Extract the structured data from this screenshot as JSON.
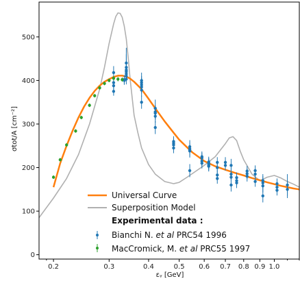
{
  "chart_data": {
    "type": "line",
    "title": "",
    "xlabel": "εᵧ [GeV]",
    "ylabel": "σtot/A [cm⁻²]",
    "x_scale": "log",
    "xlim": [
      0.18,
      1.2
    ],
    "ylim": [
      -10,
      580
    ],
    "x_ticks": [
      0.2,
      0.3,
      0.4,
      0.5,
      0.6,
      0.7,
      0.8,
      0.9,
      1.0
    ],
    "x_tick_labels": [
      "0.2",
      "0.3",
      "0.4",
      "0.5",
      "0.6",
      "0.7",
      "0.8",
      "0.9",
      "1.0"
    ],
    "y_ticks": [
      0,
      100,
      200,
      300,
      400,
      500
    ],
    "y_tick_labels": [
      "0",
      "100",
      "200",
      "300",
      "400",
      "500"
    ],
    "grid": false,
    "legend_position": "lower-left",
    "series": [
      {
        "name": "Universal Curve",
        "kind": "line",
        "color": "#ff7f0e",
        "x": [
          0.2,
          0.21,
          0.22,
          0.23,
          0.24,
          0.25,
          0.26,
          0.27,
          0.28,
          0.29,
          0.3,
          0.31,
          0.32,
          0.33,
          0.34,
          0.35,
          0.36,
          0.38,
          0.4,
          0.42,
          0.45,
          0.48,
          0.5,
          0.55,
          0.6,
          0.65,
          0.7,
          0.75,
          0.8,
          0.85,
          0.9,
          0.95,
          1.0,
          1.05,
          1.1,
          1.15,
          1.2
        ],
        "y": [
          155,
          210,
          250,
          285,
          315,
          340,
          360,
          376,
          388,
          397,
          403,
          408,
          411,
          411,
          409,
          404,
          397,
          380,
          358,
          336,
          306,
          280,
          264,
          235,
          215,
          203,
          195,
          188,
          182,
          176,
          171,
          166,
          162,
          158,
          155,
          152,
          150
        ]
      },
      {
        "name": "Superposition Model",
        "kind": "line",
        "color": "#b0b0b0",
        "x": [
          0.18,
          0.2,
          0.22,
          0.24,
          0.26,
          0.28,
          0.29,
          0.3,
          0.31,
          0.315,
          0.32,
          0.325,
          0.33,
          0.335,
          0.34,
          0.345,
          0.35,
          0.36,
          0.37,
          0.38,
          0.4,
          0.42,
          0.45,
          0.48,
          0.5,
          0.53,
          0.55,
          0.6,
          0.65,
          0.7,
          0.72,
          0.74,
          0.76,
          0.78,
          0.8,
          0.85,
          0.9,
          0.95,
          1.0,
          1.05,
          1.1,
          1.15,
          1.2
        ],
        "y": [
          85,
          130,
          175,
          230,
          300,
          380,
          430,
          485,
          530,
          547,
          555,
          554,
          545,
          525,
          495,
          450,
          400,
          320,
          280,
          245,
          207,
          185,
          168,
          163,
          166,
          178,
          186,
          205,
          225,
          255,
          268,
          271,
          262,
          238,
          218,
          185,
          170,
          178,
          182,
          176,
          168,
          162,
          155
        ]
      },
      {
        "name": "Bianchi N. et al PRC54 1996",
        "kind": "errorbar",
        "color": "#1f77b4",
        "x": [
          0.31,
          0.31,
          0.31,
          0.31,
          0.335,
          0.335,
          0.34,
          0.34,
          0.34,
          0.34,
          0.34,
          0.34,
          0.34,
          0.38,
          0.38,
          0.38,
          0.38,
          0.38,
          0.38,
          0.42,
          0.42,
          0.42,
          0.42,
          0.42,
          0.48,
          0.48,
          0.48,
          0.48,
          0.54,
          0.54,
          0.54,
          0.54,
          0.54,
          0.59,
          0.59,
          0.59,
          0.59,
          0.62,
          0.62,
          0.62,
          0.62,
          0.62,
          0.66,
          0.66,
          0.66,
          0.66,
          0.7,
          0.7,
          0.73,
          0.73,
          0.73,
          0.73,
          0.76,
          0.76,
          0.76,
          0.82,
          0.82,
          0.82,
          0.87,
          0.87,
          0.87,
          0.92,
          0.92,
          0.92,
          0.92,
          1.02,
          1.02,
          1.02,
          1.1,
          1.1
        ],
        "y": [
          375,
          388,
          395,
          418,
          400,
          402,
          403,
          410,
          415,
          420,
          424,
          430,
          440,
          350,
          378,
          385,
          390,
          395,
          400,
          292,
          318,
          325,
          328,
          336,
          245,
          252,
          256,
          260,
          193,
          238,
          240,
          243,
          248,
          210,
          215,
          222,
          225,
          203,
          205,
          208,
          210,
          213,
          175,
          183,
          200,
          212,
          205,
          212,
          160,
          178,
          185,
          205,
          165,
          170,
          177,
          180,
          186,
          192,
          168,
          185,
          193,
          135,
          158,
          165,
          170,
          148,
          155,
          163,
          150,
          160
        ],
        "yerr": [
          10,
          10,
          10,
          15,
          10,
          10,
          12,
          12,
          15,
          15,
          20,
          30,
          35,
          15,
          15,
          15,
          15,
          15,
          18,
          15,
          15,
          15,
          15,
          20,
          12,
          12,
          12,
          12,
          15,
          15,
          15,
          15,
          15,
          12,
          12,
          12,
          12,
          12,
          12,
          12,
          12,
          12,
          12,
          12,
          12,
          12,
          12,
          12,
          15,
          15,
          15,
          15,
          12,
          12,
          12,
          12,
          12,
          12,
          12,
          12,
          12,
          15,
          15,
          15,
          15,
          12,
          12,
          12,
          20,
          25
        ]
      },
      {
        "name": "MacCromick, M. et al PRC55 1997",
        "kind": "errorbar",
        "color": "#2ca02c",
        "x": [
          0.2,
          0.21,
          0.22,
          0.235,
          0.245,
          0.26,
          0.27,
          0.28,
          0.29,
          0.3,
          0.31,
          0.32,
          0.33
        ],
        "y": [
          178,
          218,
          252,
          284,
          315,
          343,
          365,
          383,
          393,
          400,
          405,
          403,
          402
        ],
        "yerr": [
          4,
          4,
          4,
          4,
          4,
          4,
          4,
          4,
          4,
          4,
          5,
          5,
          5
        ]
      }
    ],
    "legend": {
      "universal_label": "Universal Curve",
      "superposition_label": "Superposition Model",
      "heading": "Experimental data :",
      "bianchi_prefix": "Bianchi N. ",
      "bianchi_italic": "et al",
      "bianchi_suffix": " PRC54 1996",
      "maccromick_prefix": "MacCromick, M. ",
      "maccromick_italic": "et al",
      "maccromick_suffix": " PRC55 1997"
    }
  }
}
